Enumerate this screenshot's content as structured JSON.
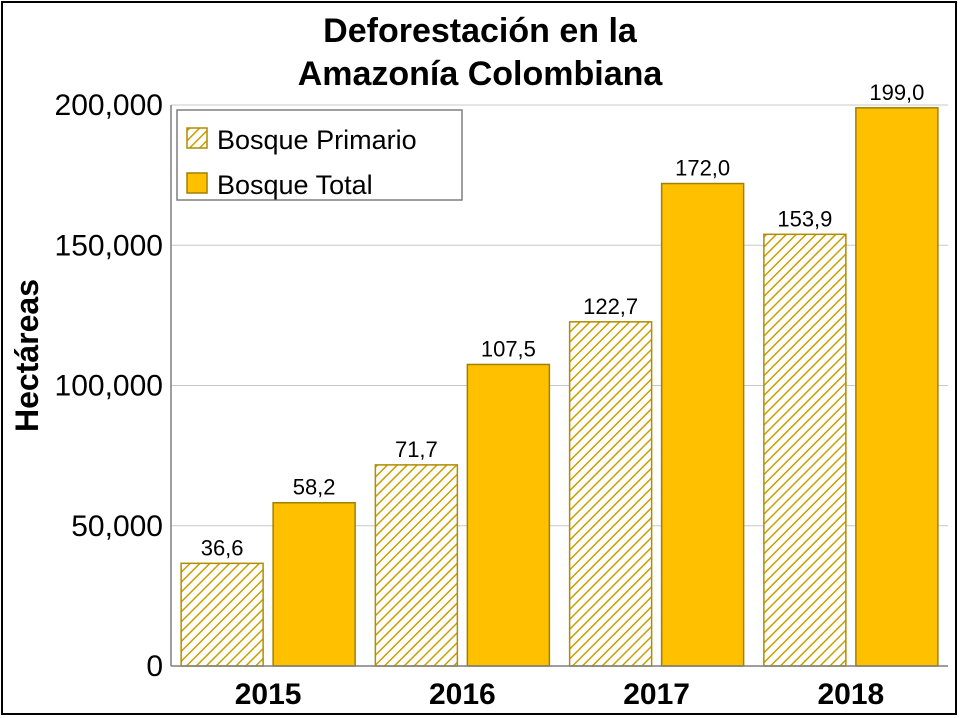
{
  "chart_data": {
    "type": "bar",
    "title": [
      "Deforestación en la",
      "Amazonía Colombiana"
    ],
    "ylabel": "Hectáreas",
    "xlabel": "",
    "ylim": [
      0,
      200000
    ],
    "yticks": [
      0,
      50000,
      100000,
      150000,
      200000
    ],
    "ytick_labels": [
      "0",
      "50,000",
      "100,000",
      "150,000",
      "200,000"
    ],
    "grid": true,
    "legend_position": "top-left",
    "categories": [
      "2015",
      "2016",
      "2017",
      "2018"
    ],
    "series": [
      {
        "name": "Bosque Primario",
        "pattern": "hatched",
        "color": "#c8a000",
        "values": [
          36600,
          71700,
          122700,
          153900
        ],
        "data_labels": [
          "36,6",
          "71,7",
          "122,7",
          "153,9"
        ]
      },
      {
        "name": "Bosque Total",
        "pattern": "solid",
        "color": "#ffc000",
        "border": "#a08000",
        "values": [
          58200,
          107500,
          172000,
          199000
        ],
        "data_labels": [
          "58,2",
          "107,5",
          "172,0",
          "199,0"
        ]
      }
    ]
  }
}
